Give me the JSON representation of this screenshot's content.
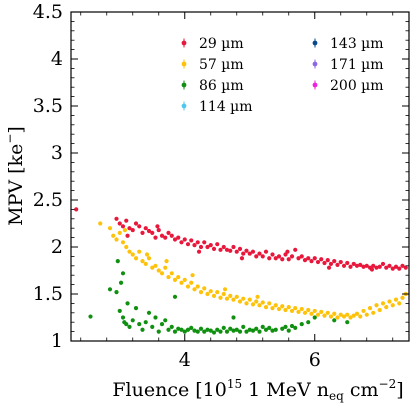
{
  "chart_data": {
    "type": "scatter",
    "xlabel": "Fluence [10^15 1 MeV n_eq cm^-2]",
    "xlabel_parts": {
      "main": "Fluence [10",
      "exp1": "15",
      "mid": " 1 MeV n",
      "sub": "eq",
      "cm": " cm",
      "exp2": "−2",
      "close": "]"
    },
    "ylabel": "MPV [ke−]",
    "ylabel_parts": {
      "main": "MPV [ke",
      "exp": "−",
      "close": "]"
    },
    "xlim": [
      2.25,
      7.45
    ],
    "ylim": [
      1.0,
      4.5
    ],
    "x_ticks": [
      {
        "value": 4,
        "label": "4"
      },
      {
        "value": 6,
        "label": "6"
      }
    ],
    "y_ticks": [
      {
        "value": 1,
        "label": "1"
      },
      {
        "value": 1.5,
        "label": "1.5"
      },
      {
        "value": 2,
        "label": "2"
      },
      {
        "value": 2.5,
        "label": "2.5"
      },
      {
        "value": 3,
        "label": "3"
      },
      {
        "value": 3.5,
        "label": "3.5"
      },
      {
        "value": 4,
        "label": "4"
      },
      {
        "value": 4.5,
        "label": "4.5"
      }
    ],
    "legend_position": "top-right",
    "series": [
      {
        "name": "29 µm",
        "color": "#e8173c",
        "points": [
          [
            2.33,
            2.4
          ],
          [
            2.95,
            2.3
          ],
          [
            3.0,
            2.25
          ],
          [
            3.05,
            2.22
          ],
          [
            3.1,
            2.28
          ],
          [
            3.15,
            2.2
          ],
          [
            3.2,
            2.18
          ],
          [
            3.25,
            2.25
          ],
          [
            3.3,
            2.22
          ],
          [
            3.35,
            2.15
          ],
          [
            3.4,
            2.2
          ],
          [
            3.45,
            2.17
          ],
          [
            3.5,
            2.15
          ],
          [
            3.55,
            2.1
          ],
          [
            3.6,
            2.18
          ],
          [
            3.65,
            2.12
          ],
          [
            3.7,
            2.1
          ],
          [
            3.75,
            2.15
          ],
          [
            3.8,
            2.12
          ],
          [
            3.85,
            2.08
          ],
          [
            3.9,
            2.1
          ],
          [
            3.95,
            2.05
          ],
          [
            4.0,
            2.08
          ],
          [
            4.05,
            2.03
          ],
          [
            4.1,
            2.07
          ],
          [
            4.15,
            2.02
          ],
          [
            4.2,
            2.05
          ],
          [
            4.25,
            2.0
          ],
          [
            4.3,
            2.05
          ],
          [
            4.35,
            2.0
          ],
          [
            4.4,
            2.02
          ],
          [
            4.45,
            1.98
          ],
          [
            4.5,
            2.03
          ],
          [
            4.55,
            1.97
          ],
          [
            4.6,
            2.0
          ],
          [
            4.65,
            1.97
          ],
          [
            4.7,
            1.96
          ],
          [
            4.75,
            2.0
          ],
          [
            4.8,
            1.95
          ],
          [
            4.85,
            1.98
          ],
          [
            4.9,
            1.93
          ],
          [
            4.95,
            1.96
          ],
          [
            5.0,
            1.93
          ],
          [
            5.05,
            1.95
          ],
          [
            5.1,
            1.9
          ],
          [
            5.15,
            1.93
          ],
          [
            5.2,
            1.9
          ],
          [
            5.25,
            1.95
          ],
          [
            5.3,
            1.88
          ],
          [
            5.35,
            1.92
          ],
          [
            5.4,
            1.88
          ],
          [
            5.45,
            1.9
          ],
          [
            5.5,
            1.87
          ],
          [
            5.55,
            1.92
          ],
          [
            5.6,
            1.87
          ],
          [
            5.65,
            1.9
          ],
          [
            5.7,
            1.97
          ],
          [
            5.75,
            1.88
          ],
          [
            5.8,
            1.9
          ],
          [
            5.85,
            1.86
          ],
          [
            5.9,
            1.88
          ],
          [
            5.95,
            1.85
          ],
          [
            6.0,
            1.88
          ],
          [
            6.05,
            1.84
          ],
          [
            6.1,
            1.87
          ],
          [
            6.15,
            1.83
          ],
          [
            6.2,
            1.86
          ],
          [
            6.25,
            1.82
          ],
          [
            6.3,
            1.85
          ],
          [
            6.35,
            1.81
          ],
          [
            6.4,
            1.84
          ],
          [
            6.45,
            1.8
          ],
          [
            6.5,
            1.83
          ],
          [
            6.55,
            1.79
          ],
          [
            6.6,
            1.82
          ],
          [
            6.65,
            1.8
          ],
          [
            6.7,
            1.81
          ],
          [
            6.75,
            1.79
          ],
          [
            6.8,
            1.8
          ],
          [
            6.85,
            1.78
          ],
          [
            6.9,
            1.8
          ],
          [
            6.95,
            1.78
          ],
          [
            7.0,
            1.79
          ],
          [
            7.05,
            1.82
          ],
          [
            7.1,
            1.78
          ],
          [
            7.15,
            1.8
          ],
          [
            7.2,
            1.77
          ],
          [
            7.25,
            1.79
          ],
          [
            7.3,
            1.77
          ],
          [
            7.35,
            1.8
          ],
          [
            7.4,
            1.78
          ],
          [
            3.12,
            2.12
          ],
          [
            3.58,
            2.22
          ],
          [
            4.22,
            1.95
          ],
          [
            4.88,
            1.88
          ],
          [
            5.58,
            1.95
          ],
          [
            6.22,
            1.78
          ],
          [
            6.88,
            1.76
          ]
        ]
      },
      {
        "name": "57 µm",
        "color": "#ffc20a",
        "points": [
          [
            2.7,
            2.25
          ],
          [
            2.85,
            2.2
          ],
          [
            2.9,
            2.12
          ],
          [
            2.95,
            2.08
          ],
          [
            3.0,
            2.15
          ],
          [
            3.05,
            2.05
          ],
          [
            3.1,
            2.0
          ],
          [
            3.15,
            1.95
          ],
          [
            3.2,
            1.92
          ],
          [
            3.25,
            1.88
          ],
          [
            3.3,
            1.95
          ],
          [
            3.35,
            1.85
          ],
          [
            3.4,
            1.82
          ],
          [
            3.45,
            1.88
          ],
          [
            3.5,
            1.78
          ],
          [
            3.55,
            1.8
          ],
          [
            3.6,
            1.75
          ],
          [
            3.65,
            1.72
          ],
          [
            3.7,
            1.78
          ],
          [
            3.75,
            1.68
          ],
          [
            3.8,
            1.72
          ],
          [
            3.85,
            1.65
          ],
          [
            3.9,
            1.68
          ],
          [
            3.95,
            1.62
          ],
          [
            4.0,
            1.65
          ],
          [
            4.05,
            1.58
          ],
          [
            4.1,
            1.62
          ],
          [
            4.15,
            1.55
          ],
          [
            4.2,
            1.58
          ],
          [
            4.25,
            1.52
          ],
          [
            4.3,
            1.56
          ],
          [
            4.35,
            1.5
          ],
          [
            4.4,
            1.53
          ],
          [
            4.45,
            1.48
          ],
          [
            4.5,
            1.52
          ],
          [
            4.55,
            1.46
          ],
          [
            4.6,
            1.5
          ],
          [
            4.65,
            1.45
          ],
          [
            4.7,
            1.48
          ],
          [
            4.75,
            1.44
          ],
          [
            4.8,
            1.47
          ],
          [
            4.85,
            1.42
          ],
          [
            4.9,
            1.45
          ],
          [
            4.95,
            1.4
          ],
          [
            5.0,
            1.44
          ],
          [
            5.05,
            1.39
          ],
          [
            5.1,
            1.42
          ],
          [
            5.15,
            1.38
          ],
          [
            5.2,
            1.41
          ],
          [
            5.25,
            1.36
          ],
          [
            5.3,
            1.4
          ],
          [
            5.35,
            1.35
          ],
          [
            5.4,
            1.38
          ],
          [
            5.45,
            1.34
          ],
          [
            5.5,
            1.37
          ],
          [
            5.55,
            1.33
          ],
          [
            5.6,
            1.36
          ],
          [
            5.65,
            1.32
          ],
          [
            5.7,
            1.35
          ],
          [
            5.75,
            1.31
          ],
          [
            5.8,
            1.34
          ],
          [
            5.85,
            1.3
          ],
          [
            5.9,
            1.33
          ],
          [
            5.95,
            1.29
          ],
          [
            6.0,
            1.32
          ],
          [
            6.05,
            1.28
          ],
          [
            6.1,
            1.31
          ],
          [
            6.15,
            1.27
          ],
          [
            6.2,
            1.3
          ],
          [
            6.25,
            1.26
          ],
          [
            6.3,
            1.29
          ],
          [
            6.35,
            1.25
          ],
          [
            6.4,
            1.28
          ],
          [
            6.45,
            1.26
          ],
          [
            6.5,
            1.28
          ],
          [
            6.55,
            1.25
          ],
          [
            6.6,
            1.27
          ],
          [
            6.65,
            1.29
          ],
          [
            6.7,
            1.26
          ],
          [
            6.75,
            1.32
          ],
          [
            6.8,
            1.28
          ],
          [
            6.85,
            1.35
          ],
          [
            6.9,
            1.3
          ],
          [
            6.95,
            1.38
          ],
          [
            7.0,
            1.33
          ],
          [
            7.05,
            1.4
          ],
          [
            7.1,
            1.36
          ],
          [
            7.15,
            1.42
          ],
          [
            7.2,
            1.38
          ],
          [
            7.25,
            1.44
          ],
          [
            7.3,
            1.4
          ],
          [
            7.35,
            1.46
          ],
          [
            7.4,
            1.5
          ],
          [
            3.08,
            2.18
          ],
          [
            3.42,
            1.92
          ],
          [
            3.72,
            1.85
          ],
          [
            4.12,
            1.7
          ],
          [
            4.62,
            1.55
          ],
          [
            5.12,
            1.47
          ]
        ]
      },
      {
        "name": "86 µm",
        "color": "#109010",
        "points": [
          [
            2.55,
            1.26
          ],
          [
            2.85,
            1.55
          ],
          [
            2.95,
            1.52
          ],
          [
            3.0,
            1.32
          ],
          [
            3.02,
            1.62
          ],
          [
            3.05,
            1.25
          ],
          [
            3.07,
            1.2
          ],
          [
            3.1,
            1.18
          ],
          [
            3.12,
            1.4
          ],
          [
            3.15,
            1.15
          ],
          [
            3.2,
            1.22
          ],
          [
            3.25,
            1.35
          ],
          [
            3.3,
            1.18
          ],
          [
            3.35,
            1.12
          ],
          [
            3.4,
            1.2
          ],
          [
            3.45,
            1.3
          ],
          [
            3.5,
            1.15
          ],
          [
            3.55,
            1.25
          ],
          [
            3.6,
            1.1
          ],
          [
            3.65,
            1.18
          ],
          [
            3.7,
            1.22
          ],
          [
            3.75,
            1.12
          ],
          [
            3.8,
            1.15
          ],
          [
            3.85,
            1.1
          ],
          [
            3.9,
            1.13
          ],
          [
            3.95,
            1.12
          ],
          [
            4.0,
            1.1
          ],
          [
            4.05,
            1.12
          ],
          [
            4.1,
            1.14
          ],
          [
            4.15,
            1.11
          ],
          [
            4.2,
            1.1
          ],
          [
            4.25,
            1.13
          ],
          [
            4.3,
            1.1
          ],
          [
            4.35,
            1.12
          ],
          [
            4.4,
            1.11
          ],
          [
            4.45,
            1.09
          ],
          [
            4.5,
            1.12
          ],
          [
            4.55,
            1.1
          ],
          [
            4.6,
            1.14
          ],
          [
            4.65,
            1.1
          ],
          [
            4.7,
            1.13
          ],
          [
            4.75,
            1.11
          ],
          [
            4.8,
            1.12
          ],
          [
            4.85,
            1.1
          ],
          [
            4.9,
            1.15
          ],
          [
            4.95,
            1.1
          ],
          [
            5.0,
            1.12
          ],
          [
            5.05,
            1.11
          ],
          [
            5.1,
            1.13
          ],
          [
            5.15,
            1.1
          ],
          [
            5.2,
            1.15
          ],
          [
            5.25,
            1.12
          ],
          [
            5.3,
            1.14
          ],
          [
            5.35,
            1.11
          ],
          [
            5.4,
            1.12
          ],
          [
            5.5,
            1.13
          ],
          [
            5.6,
            1.11
          ],
          [
            5.7,
            1.14
          ],
          [
            5.8,
            1.18
          ],
          [
            5.9,
            1.2
          ],
          [
            6.0,
            1.25
          ],
          [
            6.3,
            1.22
          ],
          [
            6.5,
            1.2
          ],
          [
            3.05,
            1.72
          ],
          [
            2.97,
            1.85
          ],
          [
            3.85,
            1.47
          ],
          [
            4.75,
            1.25
          ],
          [
            5.55,
            1.15
          ],
          [
            5.65,
            1.16
          ]
        ]
      },
      {
        "name": "114 µm",
        "color": "#4fc8f0",
        "points": []
      },
      {
        "name": "143 µm",
        "color": "#0a4a8c",
        "points": []
      },
      {
        "name": "171 µm",
        "color": "#8c68e6",
        "points": []
      },
      {
        "name": "200 µm",
        "color": "#f020e0",
        "points": []
      }
    ]
  }
}
